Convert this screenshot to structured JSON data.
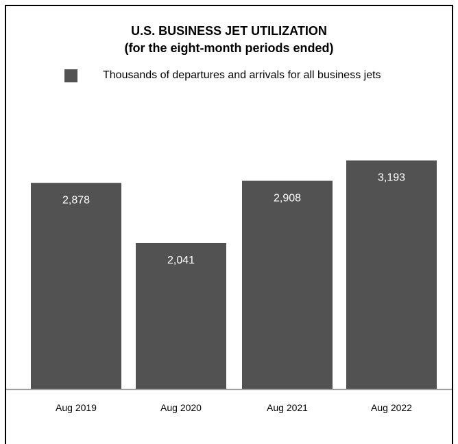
{
  "colors": {
    "bar": "#525252",
    "axis": "#999999",
    "frame": "#000000",
    "label": "#ffffff"
  },
  "chart_data": {
    "type": "bar",
    "title": "U.S. BUSINESS JET UTILIZATION",
    "subtitle": "(for the eight-month periods ended)",
    "legend": {
      "placement": "top",
      "entries": [
        "Thousands of departures and arrivals for all business jets"
      ]
    },
    "categories": [
      "Aug 2019",
      "Aug 2020",
      "Aug 2021",
      "Aug 2022"
    ],
    "values": [
      2878,
      2041,
      2908,
      3193
    ],
    "value_labels": [
      "2,878",
      "2,041",
      "2,908",
      "3,193"
    ],
    "ylim": [
      0,
      3500
    ],
    "grid": false
  }
}
